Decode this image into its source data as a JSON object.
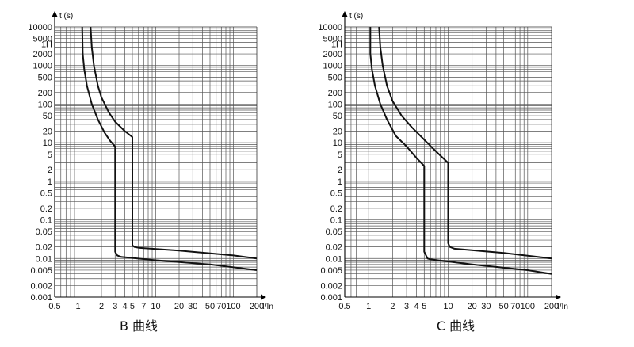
{
  "chart_data": [
    {
      "type": "line",
      "caption": "B 曲线",
      "ylabel": "t (s)",
      "xlabel": "I/In",
      "xscale": "log",
      "yscale": "log",
      "xlim": [
        0.5,
        200
      ],
      "ylim": [
        0.001,
        10000
      ],
      "grid": true,
      "x_ticks": [
        {
          "v": 0.5,
          "label": "0.5"
        },
        {
          "v": 1,
          "label": "1"
        },
        {
          "v": 2,
          "label": "2"
        },
        {
          "v": 3,
          "label": "3"
        },
        {
          "v": 4,
          "label": "4"
        },
        {
          "v": 5,
          "label": "5"
        },
        {
          "v": 7,
          "label": "7"
        },
        {
          "v": 10,
          "label": "10"
        },
        {
          "v": 20,
          "label": "20"
        },
        {
          "v": 30,
          "label": "30"
        },
        {
          "v": 50,
          "label": "50"
        },
        {
          "v": 70,
          "label": "70"
        },
        {
          "v": 100,
          "label": "100"
        },
        {
          "v": 200,
          "label": "200"
        }
      ],
      "y_ticks": [
        {
          "v": 10000,
          "label": "10000"
        },
        {
          "v": 5000,
          "label": "5000"
        },
        {
          "v": 3600,
          "label": "1H"
        },
        {
          "v": 2000,
          "label": "2000"
        },
        {
          "v": 1000,
          "label": "1000"
        },
        {
          "v": 500,
          "label": "500"
        },
        {
          "v": 200,
          "label": "200"
        },
        {
          "v": 100,
          "label": "100"
        },
        {
          "v": 50,
          "label": "50"
        },
        {
          "v": 20,
          "label": "20"
        },
        {
          "v": 10,
          "label": "10"
        },
        {
          "v": 5,
          "label": "5"
        },
        {
          "v": 2,
          "label": "2"
        },
        {
          "v": 1,
          "label": "1"
        },
        {
          "v": 0.5,
          "label": "0.5"
        },
        {
          "v": 0.2,
          "label": "0.2"
        },
        {
          "v": 0.1,
          "label": "0.1"
        },
        {
          "v": 0.05,
          "label": "0.05"
        },
        {
          "v": 0.02,
          "label": "0.02"
        },
        {
          "v": 0.01,
          "label": "0.01"
        },
        {
          "v": 0.005,
          "label": "0.005"
        },
        {
          "v": 0.002,
          "label": "0.002"
        },
        {
          "v": 0.001,
          "label": "0.001"
        }
      ],
      "series": [
        {
          "points": [
            [
              1.13,
              10000
            ],
            [
              1.15,
              2000
            ],
            [
              1.2,
              800
            ],
            [
              1.3,
              300
            ],
            [
              1.5,
              100
            ],
            [
              1.8,
              40
            ],
            [
              2.2,
              18
            ],
            [
              2.6,
              11
            ],
            [
              3,
              8
            ],
            [
              3,
              0.015
            ],
            [
              3.2,
              0.012
            ],
            [
              3.6,
              0.011
            ],
            [
              10,
              0.009
            ],
            [
              50,
              0.007
            ],
            [
              200,
              0.005
            ]
          ]
        },
        {
          "points": [
            [
              1.45,
              10000
            ],
            [
              1.5,
              3000
            ],
            [
              1.6,
              1000
            ],
            [
              1.8,
              300
            ],
            [
              2,
              150
            ],
            [
              2.5,
              60
            ],
            [
              3,
              35
            ],
            [
              4,
              20
            ],
            [
              5,
              14
            ],
            [
              5,
              0.022
            ],
            [
              5.3,
              0.02
            ],
            [
              6,
              0.019
            ],
            [
              20,
              0.016
            ],
            [
              100,
              0.012
            ],
            [
              200,
              0.01
            ]
          ]
        }
      ]
    },
    {
      "type": "line",
      "caption": "C 曲线",
      "ylabel": "t (s)",
      "xlabel": "I/In",
      "xscale": "log",
      "yscale": "log",
      "xlim": [
        0.5,
        200
      ],
      "ylim": [
        0.001,
        10000
      ],
      "grid": true,
      "x_ticks": [
        {
          "v": 0.5,
          "label": "0.5"
        },
        {
          "v": 1,
          "label": "1"
        },
        {
          "v": 2,
          "label": "2"
        },
        {
          "v": 3,
          "label": "3"
        },
        {
          "v": 4,
          "label": "4"
        },
        {
          "v": 5,
          "label": "5"
        },
        {
          "v": 10,
          "label": "10"
        },
        {
          "v": 20,
          "label": "20"
        },
        {
          "v": 30,
          "label": "30"
        },
        {
          "v": 50,
          "label": "50"
        },
        {
          "v": 70,
          "label": "70"
        },
        {
          "v": 100,
          "label": "100"
        },
        {
          "v": 200,
          "label": "200"
        }
      ],
      "y_ticks": [
        {
          "v": 10000,
          "label": "10000"
        },
        {
          "v": 5000,
          "label": "5000"
        },
        {
          "v": 3600,
          "label": "1H"
        },
        {
          "v": 2000,
          "label": "2000"
        },
        {
          "v": 1000,
          "label": "1000"
        },
        {
          "v": 500,
          "label": "500"
        },
        {
          "v": 200,
          "label": "200"
        },
        {
          "v": 100,
          "label": "100"
        },
        {
          "v": 50,
          "label": "50"
        },
        {
          "v": 20,
          "label": "20"
        },
        {
          "v": 10,
          "label": "10"
        },
        {
          "v": 5,
          "label": "5"
        },
        {
          "v": 2,
          "label": "2"
        },
        {
          "v": 1,
          "label": "1"
        },
        {
          "v": 0.5,
          "label": "0.5"
        },
        {
          "v": 0.2,
          "label": "0.2"
        },
        {
          "v": 0.1,
          "label": "0.1"
        },
        {
          "v": 0.05,
          "label": "0.05"
        },
        {
          "v": 0.02,
          "label": "0.02"
        },
        {
          "v": 0.01,
          "label": "0.01"
        },
        {
          "v": 0.005,
          "label": "0.005"
        },
        {
          "v": 0.002,
          "label": "0.002"
        },
        {
          "v": 0.001,
          "label": "0.001"
        }
      ],
      "series": [
        {
          "points": [
            [
              1.05,
              10000
            ],
            [
              1.05,
              2000
            ],
            [
              1.1,
              800
            ],
            [
              1.2,
              300
            ],
            [
              1.4,
              100
            ],
            [
              1.7,
              40
            ],
            [
              2.2,
              15
            ],
            [
              3,
              8
            ],
            [
              4,
              4
            ],
            [
              5,
              2.5
            ],
            [
              5,
              0.015
            ],
            [
              5.5,
              0.01
            ],
            [
              6,
              0.0095
            ],
            [
              20,
              0.007
            ],
            [
              100,
              0.005
            ],
            [
              200,
              0.004
            ]
          ]
        },
        {
          "points": [
            [
              1.35,
              10000
            ],
            [
              1.4,
              3000
            ],
            [
              1.5,
              1000
            ],
            [
              1.7,
              300
            ],
            [
              2,
              120
            ],
            [
              2.6,
              50
            ],
            [
              3.5,
              25
            ],
            [
              5,
              12
            ],
            [
              7,
              6
            ],
            [
              10,
              3
            ],
            [
              10,
              0.025
            ],
            [
              10.5,
              0.02
            ],
            [
              12,
              0.018
            ],
            [
              50,
              0.014
            ],
            [
              200,
              0.01
            ]
          ]
        }
      ]
    }
  ]
}
